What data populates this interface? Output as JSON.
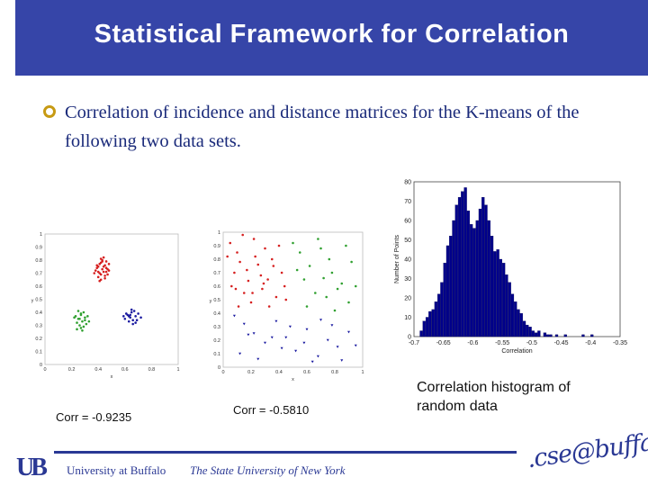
{
  "slide": {
    "title": "Statistical Framework for Correlation",
    "bullet": "Correlation of incidence and distance matrices for the K-means of the following two data sets.",
    "corr_left": "Corr = -0.9235",
    "corr_right": "Corr = -0.5810",
    "caption": "Correlation histogram of random data"
  },
  "footer": {
    "logo": "UB",
    "university": "University at Buffalo",
    "state": "The State University of New York",
    "cse": ".cse@buffalo"
  },
  "colors": {
    "title_bar": "#3645a8",
    "bullet": "#c79a13",
    "text": "#1a2a7a",
    "hist": "#00008b"
  },
  "chart_data": [
    {
      "type": "scatter",
      "xlabel": "x",
      "ylabel": "y",
      "xlim": [
        0,
        1
      ],
      "ylim": [
        0,
        1
      ],
      "x_ticks": [
        "0",
        "0.2",
        "0.4",
        "0.6",
        "0.8",
        "1"
      ],
      "y_ticks": [
        "0",
        "0.1",
        "0.2",
        "0.3",
        "0.4",
        "0.5",
        "0.6",
        "0.7",
        "0.8",
        "0.9",
        "1"
      ],
      "series": [
        {
          "color": "#d62020",
          "marker": "dot",
          "x": [
            0.4,
            0.42,
            0.45,
            0.47,
            0.44,
            0.41,
            0.39,
            0.43,
            0.46,
            0.48,
            0.4,
            0.42,
            0.45,
            0.38,
            0.43,
            0.47,
            0.41,
            0.44,
            0.46,
            0.4,
            0.42,
            0.39,
            0.45,
            0.43,
            0.48,
            0.41,
            0.44,
            0.37,
            0.46,
            0.42
          ],
          "y": [
            0.75,
            0.78,
            0.76,
            0.73,
            0.71,
            0.7,
            0.74,
            0.8,
            0.79,
            0.77,
            0.67,
            0.65,
            0.68,
            0.72,
            0.73,
            0.69,
            0.77,
            0.82,
            0.74,
            0.71,
            0.69,
            0.76,
            0.66,
            0.79,
            0.72,
            0.64,
            0.75,
            0.7,
            0.71,
            0.81
          ]
        },
        {
          "color": "#30a030",
          "marker": "dot",
          "x": [
            0.25,
            0.27,
            0.3,
            0.28,
            0.24,
            0.26,
            0.32,
            0.29,
            0.23,
            0.27,
            0.31,
            0.25,
            0.28,
            0.3,
            0.26,
            0.22,
            0.29,
            0.33,
            0.27,
            0.24
          ],
          "y": [
            0.35,
            0.38,
            0.36,
            0.33,
            0.32,
            0.3,
            0.37,
            0.4,
            0.37,
            0.28,
            0.31,
            0.41,
            0.26,
            0.34,
            0.35,
            0.36,
            0.29,
            0.33,
            0.39,
            0.27
          ]
        },
        {
          "color": "#1a1aa0",
          "marker": "dot",
          "x": [
            0.62,
            0.65,
            0.68,
            0.66,
            0.6,
            0.63,
            0.7,
            0.67,
            0.64,
            0.61,
            0.69,
            0.66,
            0.63,
            0.72,
            0.65,
            0.59,
            0.68,
            0.64
          ],
          "y": [
            0.38,
            0.4,
            0.37,
            0.34,
            0.35,
            0.33,
            0.39,
            0.41,
            0.36,
            0.39,
            0.34,
            0.31,
            0.37,
            0.36,
            0.42,
            0.37,
            0.32,
            0.38
          ]
        }
      ]
    },
    {
      "type": "scatter",
      "xlabel": "x",
      "ylabel": "y",
      "xlim": [
        0,
        1
      ],
      "ylim": [
        0,
        1
      ],
      "x_ticks": [
        "0",
        "0.2",
        "0.4",
        "0.6",
        "0.8",
        "1"
      ],
      "y_ticks": [
        "0",
        "0.1",
        "0.2",
        "0.3",
        "0.4",
        "0.5",
        "0.6",
        "0.7",
        "0.8",
        "0.9",
        "1"
      ],
      "series": [
        {
          "color": "#d62020",
          "marker": "dot",
          "x": [
            0.05,
            0.1,
            0.22,
            0.3,
            0.12,
            0.08,
            0.25,
            0.35,
            0.18,
            0.42,
            0.28,
            0.15,
            0.38,
            0.06,
            0.32,
            0.2,
            0.44,
            0.11,
            0.27,
            0.36,
            0.14,
            0.4,
            0.23,
            0.09,
            0.33,
            0.17,
            0.45,
            0.29,
            0.03,
            0.21
          ],
          "y": [
            0.92,
            0.85,
            0.95,
            0.88,
            0.78,
            0.7,
            0.76,
            0.8,
            0.64,
            0.7,
            0.58,
            0.55,
            0.52,
            0.6,
            0.65,
            0.48,
            0.6,
            0.45,
            0.68,
            0.75,
            0.98,
            0.9,
            0.82,
            0.58,
            0.45,
            0.72,
            0.5,
            0.62,
            0.82,
            0.55
          ]
        },
        {
          "color": "#30a030",
          "marker": "dot",
          "x": [
            0.5,
            0.55,
            0.62,
            0.7,
            0.78,
            0.85,
            0.92,
            0.58,
            0.66,
            0.74,
            0.82,
            0.9,
            0.53,
            0.68,
            0.76,
            0.88,
            0.6,
            0.72,
            0.95,
            0.8
          ],
          "y": [
            0.92,
            0.85,
            0.75,
            0.88,
            0.7,
            0.62,
            0.78,
            0.65,
            0.55,
            0.52,
            0.58,
            0.48,
            0.72,
            0.95,
            0.8,
            0.9,
            0.45,
            0.66,
            0.6,
            0.42
          ]
        },
        {
          "color": "#1a1aa0",
          "marker": "tri",
          "x": [
            0.08,
            0.15,
            0.22,
            0.3,
            0.38,
            0.45,
            0.52,
            0.6,
            0.68,
            0.75,
            0.82,
            0.9,
            0.12,
            0.25,
            0.35,
            0.48,
            0.58,
            0.7,
            0.85,
            0.18,
            0.42,
            0.64,
            0.78,
            0.95
          ],
          "y": [
            0.38,
            0.32,
            0.25,
            0.18,
            0.34,
            0.22,
            0.12,
            0.28,
            0.08,
            0.2,
            0.15,
            0.26,
            0.1,
            0.06,
            0.22,
            0.3,
            0.18,
            0.35,
            0.05,
            0.24,
            0.14,
            0.04,
            0.31,
            0.16
          ]
        }
      ]
    },
    {
      "type": "bar",
      "title": "",
      "xlabel": "Correlation",
      "ylabel": "Number of Points",
      "xlim": [
        -0.7,
        -0.35
      ],
      "ylim": [
        0,
        80
      ],
      "x_ticks": [
        "-0.7",
        "-0.65",
        "-0.6",
        "-0.55",
        "-0.5",
        "-0.45",
        "-0.4",
        "-0.35"
      ],
      "y_ticks": [
        "0",
        "10",
        "20",
        "30",
        "40",
        "50",
        "60",
        "70",
        "80"
      ],
      "bin_width": 0.005,
      "bin_starts": [
        -0.69,
        -0.685,
        -0.68,
        -0.675,
        -0.67,
        -0.665,
        -0.66,
        -0.655,
        -0.65,
        -0.645,
        -0.64,
        -0.635,
        -0.63,
        -0.625,
        -0.62,
        -0.615,
        -0.61,
        -0.605,
        -0.6,
        -0.595,
        -0.59,
        -0.585,
        -0.58,
        -0.575,
        -0.57,
        -0.565,
        -0.56,
        -0.555,
        -0.55,
        -0.545,
        -0.54,
        -0.535,
        -0.53,
        -0.525,
        -0.52,
        -0.515,
        -0.51,
        -0.505,
        -0.5,
        -0.495,
        -0.49,
        -0.485,
        -0.48,
        -0.475,
        -0.47,
        -0.465,
        -0.46,
        -0.455,
        -0.45,
        -0.445,
        -0.44,
        -0.435,
        -0.43,
        -0.425,
        -0.42,
        -0.415,
        -0.41,
        -0.405,
        -0.4,
        -0.395
      ],
      "values": [
        3,
        8,
        10,
        13,
        14,
        18,
        22,
        28,
        38,
        47,
        52,
        60,
        68,
        72,
        75,
        77,
        65,
        58,
        56,
        60,
        66,
        72,
        68,
        60,
        52,
        44,
        45,
        40,
        38,
        32,
        28,
        22,
        18,
        14,
        12,
        8,
        6,
        5,
        3,
        2,
        3,
        0,
        2,
        1,
        1,
        0,
        1,
        0,
        0,
        1,
        0,
        0,
        0,
        0,
        0,
        1,
        0,
        0,
        1,
        0
      ]
    }
  ]
}
